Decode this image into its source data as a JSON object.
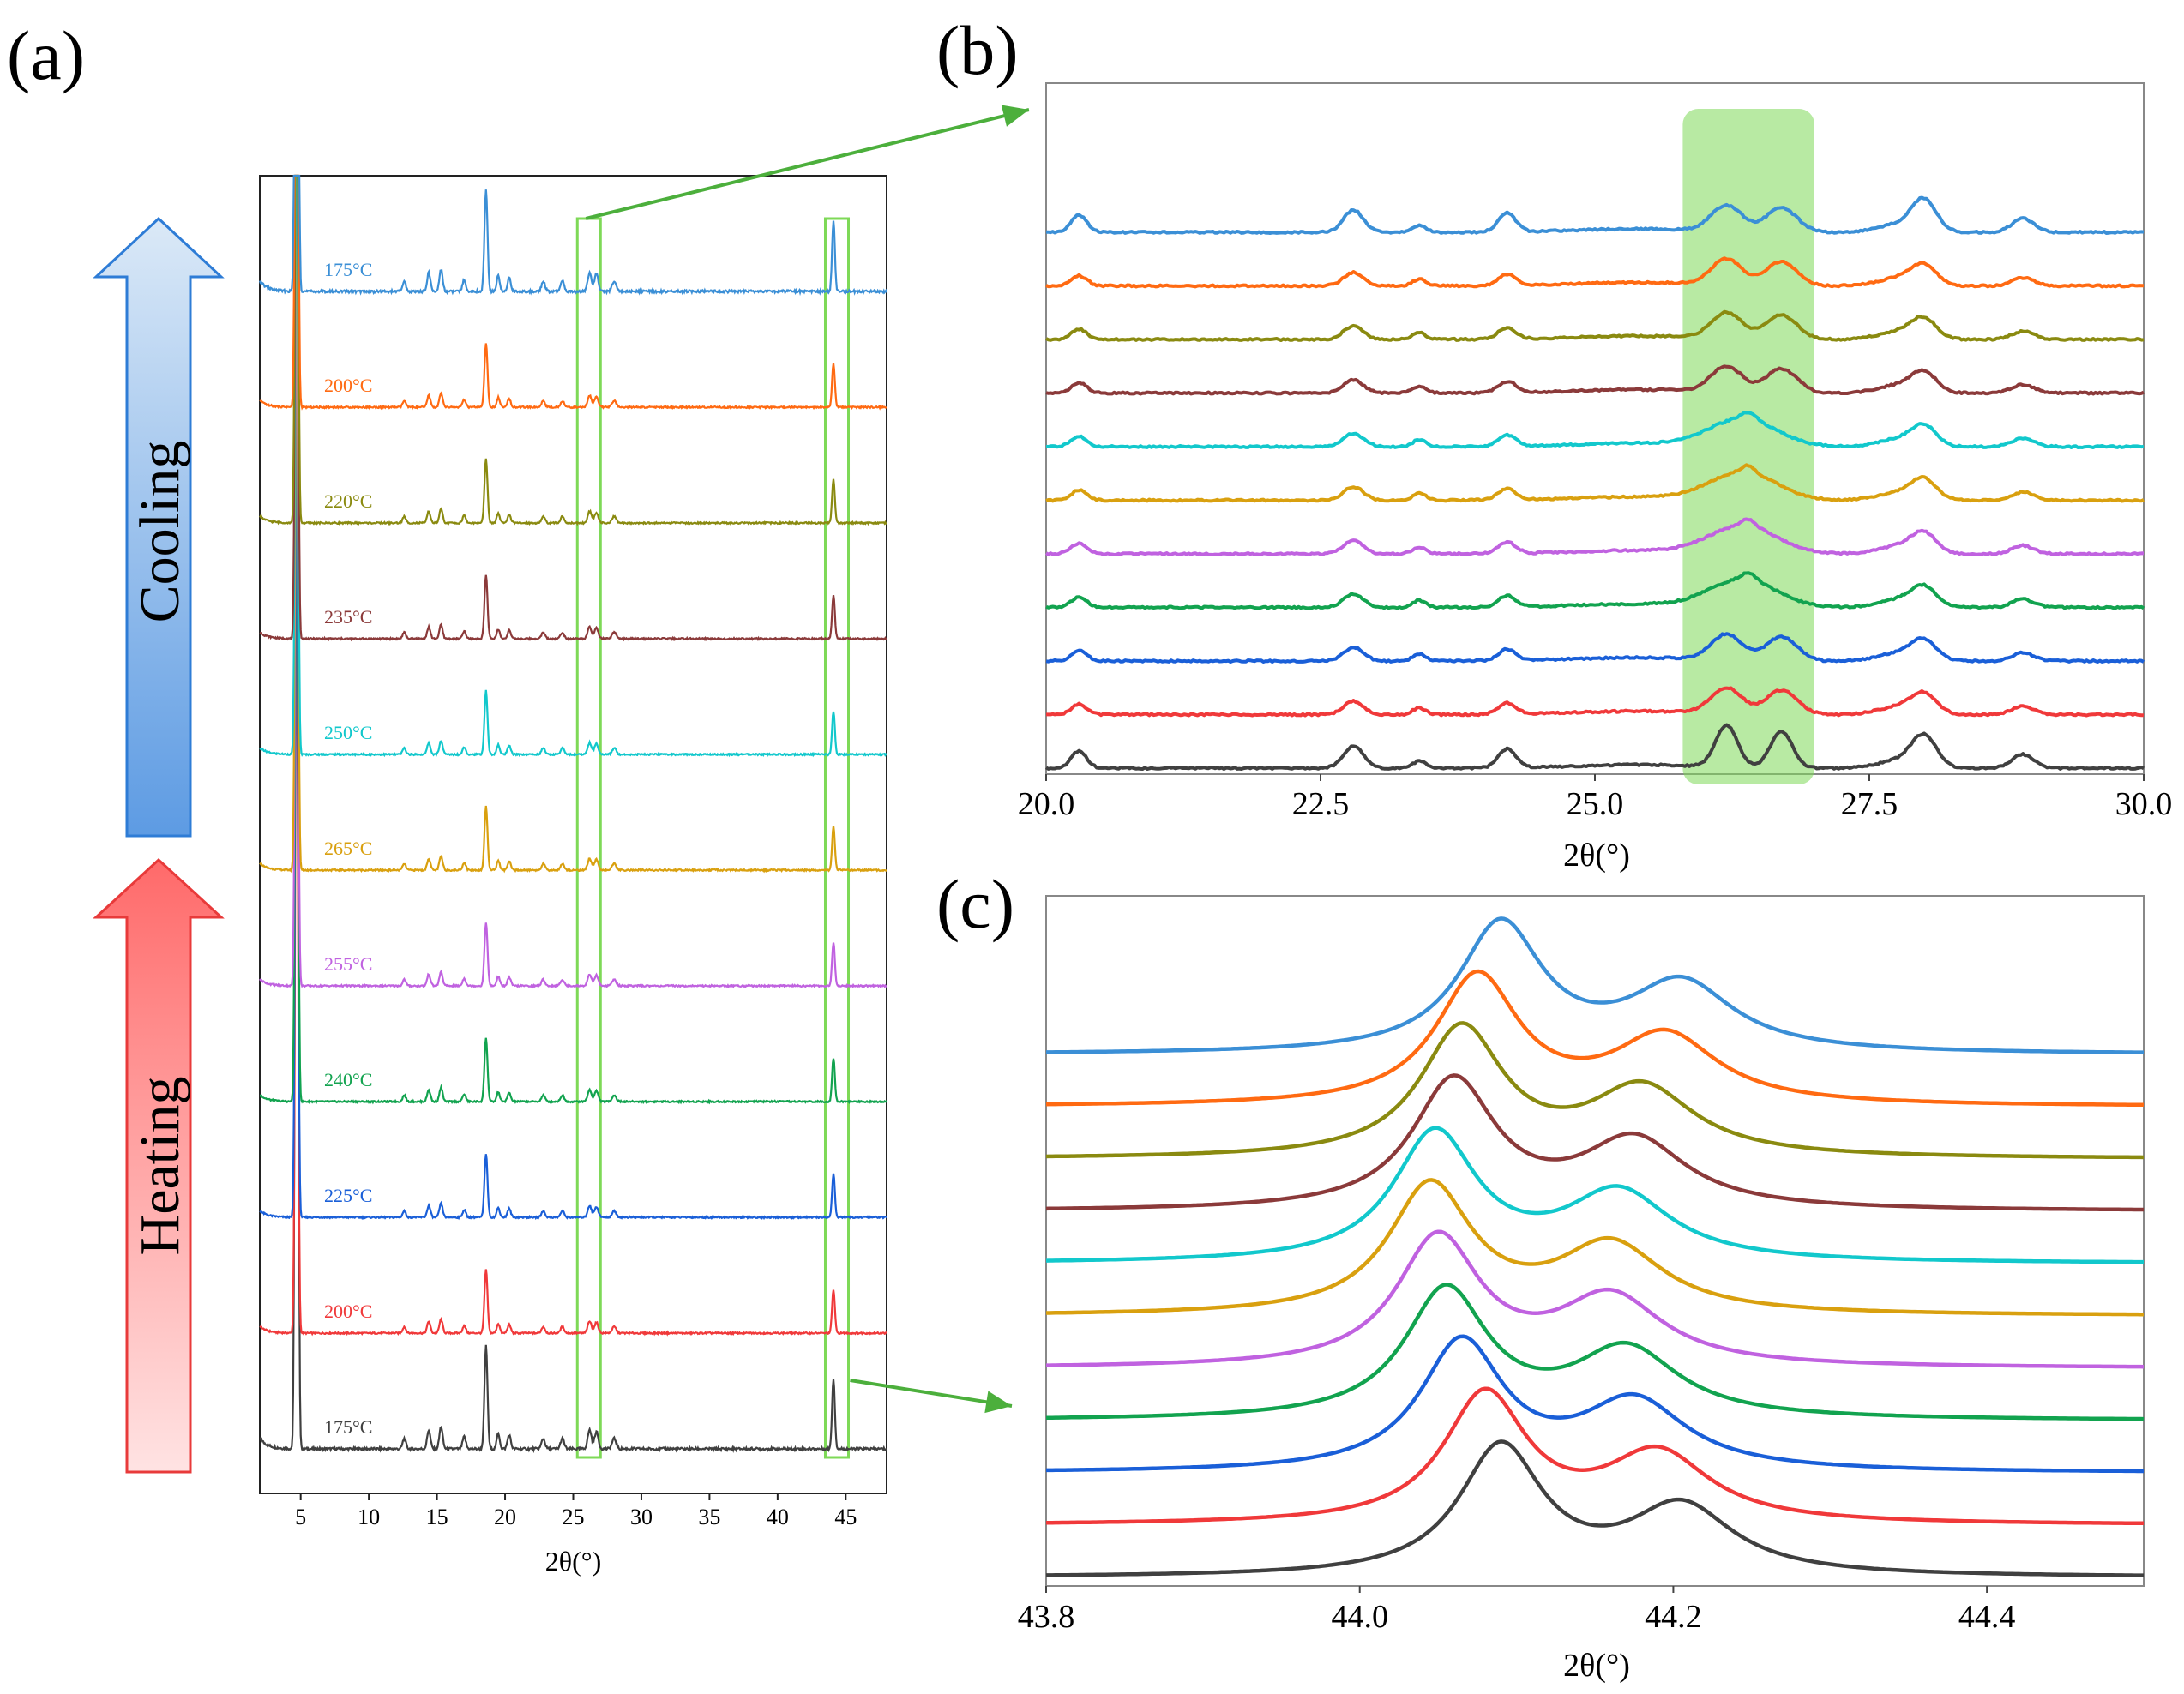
{
  "figure": {
    "panel_labels": [
      "(a)",
      "(b)",
      "(c)"
    ],
    "arrows": {
      "cooling": {
        "label": "Cooling",
        "fill_top": "#dbe9f7",
        "fill_bottom": "#5d9be3",
        "stroke": "#2e7cd6"
      },
      "heating": {
        "label": "Heating",
        "fill_top": "#ff6a6a",
        "fill_bottom": "#ffe3e3",
        "stroke": "#e83a3a"
      }
    },
    "highlight_color": "#7ed957",
    "connector_color": "#4caf3c"
  },
  "chart_data": [
    {
      "id": "a",
      "type": "line",
      "title": "",
      "xlabel": "2θ(°)",
      "ylabel": "",
      "xlim": [
        2,
        48
      ],
      "xticks": [
        5,
        10,
        15,
        20,
        25,
        30,
        35,
        40,
        45
      ],
      "xtick_labels": [
        "5",
        "10",
        "15",
        "20",
        "25",
        "30",
        "35",
        "40",
        "45"
      ],
      "highlight_boxes_2theta": [
        [
          25.3,
          27.0
        ],
        [
          43.5,
          45.2
        ]
      ],
      "series": [
        {
          "name": "175°C (heating start)",
          "label": "175°C",
          "color": "#404040"
        },
        {
          "name": "200°C (heating)",
          "label": "200°C",
          "color": "#f0393a"
        },
        {
          "name": "225°C (heating)",
          "label": "225°C",
          "color": "#1a5fd8"
        },
        {
          "name": "240°C (heating)",
          "label": "240°C",
          "color": "#12a34f"
        },
        {
          "name": "255°C (heating)",
          "label": "255°C",
          "color": "#c062e0"
        },
        {
          "name": "265°C",
          "label": "265°C",
          "color": "#d9a00f"
        },
        {
          "name": "250°C (cooling)",
          "label": "250°C",
          "color": "#12c8cc"
        },
        {
          "name": "235°C (cooling)",
          "label": "235°C",
          "color": "#8b3a3a"
        },
        {
          "name": "220°C (cooling)",
          "label": "220°C",
          "color": "#8a8a10"
        },
        {
          "name": "200°C (cooling)",
          "label": "200°C",
          "color": "#ff6a12"
        },
        {
          "name": "175°C (cooling end)",
          "label": "175°C",
          "color": "#3b8fd6"
        }
      ],
      "peaks_2theta": [
        4.7,
        14.4,
        15.3,
        17.0,
        18.6,
        19.5,
        20.3,
        22.8,
        24.2,
        26.2,
        26.7,
        28.0,
        44.1
      ]
    },
    {
      "id": "b",
      "type": "line",
      "title": "",
      "xlabel": "2θ(°)",
      "ylabel": "",
      "xlim": [
        20.0,
        30.0
      ],
      "xticks": [
        20.0,
        22.5,
        25.0,
        27.5,
        30.0
      ],
      "xtick_labels": [
        "20.0",
        "22.5",
        "25.0",
        "27.5",
        "30.0"
      ],
      "highlight_range_2theta": [
        25.8,
        27.0
      ],
      "peaks_2theta": [
        20.3,
        22.8,
        23.4,
        24.2,
        26.2,
        26.7,
        28.0,
        28.9
      ],
      "series_colors": [
        "#404040",
        "#f0393a",
        "#1a5fd8",
        "#12a34f",
        "#c062e0",
        "#d9a00f",
        "#12c8cc",
        "#8b3a3a",
        "#8a8a10",
        "#ff6a12",
        "#3b8fd6"
      ]
    },
    {
      "id": "c",
      "type": "line",
      "title": "",
      "xlabel": "2θ(°)",
      "ylabel": "",
      "xlim": [
        43.8,
        44.5
      ],
      "xticks": [
        43.8,
        44.0,
        44.2,
        44.4
      ],
      "xtick_labels": [
        "43.8",
        "44.0",
        "44.2",
        "44.4"
      ],
      "peak1_2theta": [
        44.09,
        44.08,
        44.065,
        44.055,
        44.05,
        44.045,
        44.048,
        44.06,
        44.065,
        44.075,
        44.09
      ],
      "peak2_2theta": [
        44.205,
        44.19,
        44.175,
        44.17,
        44.16,
        44.16,
        44.165,
        44.175,
        44.18,
        44.195,
        44.205
      ],
      "series_colors": [
        "#404040",
        "#f0393a",
        "#1a5fd8",
        "#12a34f",
        "#c062e0",
        "#d9a00f",
        "#12c8cc",
        "#8b3a3a",
        "#8a8a10",
        "#ff6a12",
        "#3b8fd6"
      ]
    }
  ]
}
